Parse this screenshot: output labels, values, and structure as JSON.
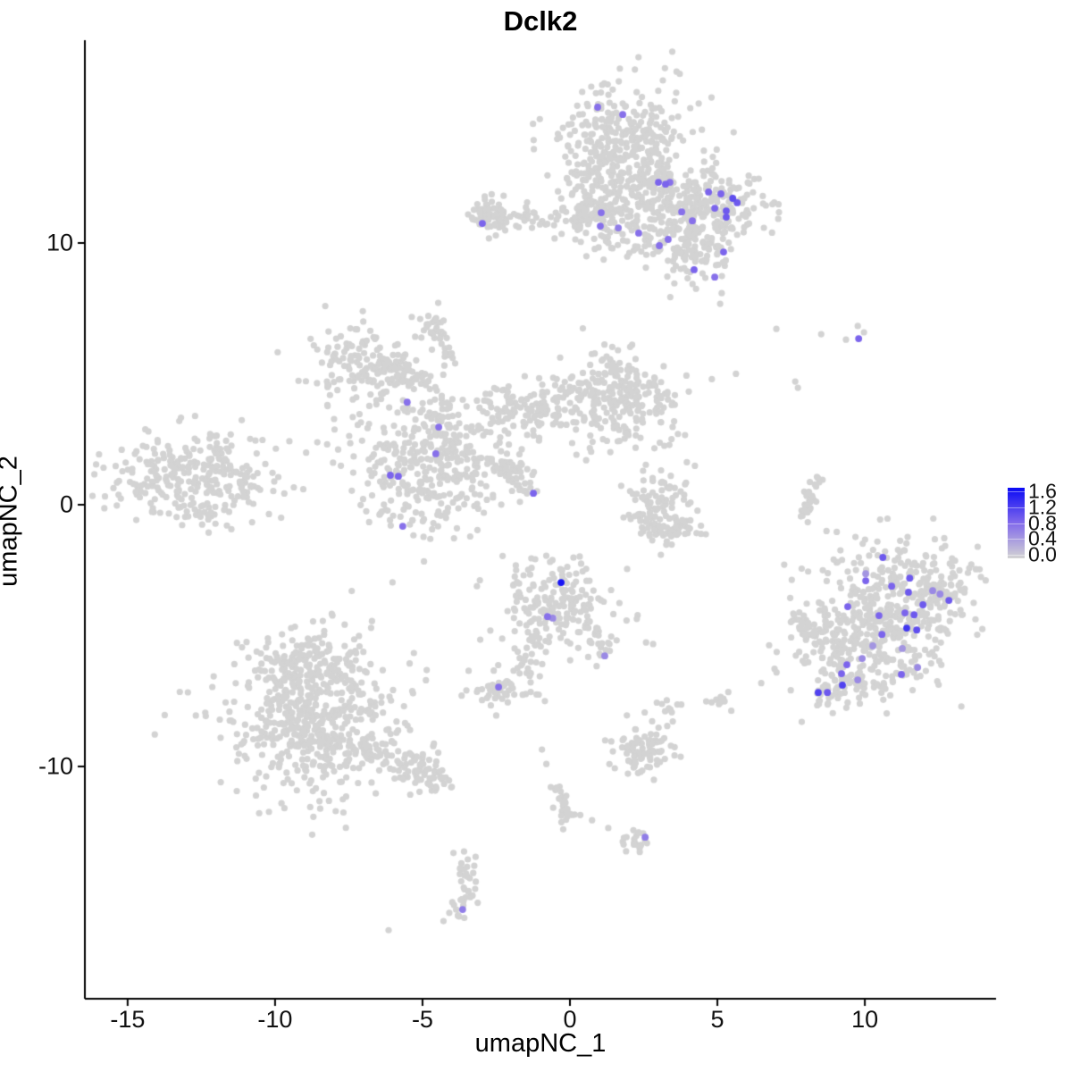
{
  "chart_data": {
    "type": "scatter",
    "title": "Dclk2",
    "xlabel": "umapNC_1",
    "ylabel": "umapNC_2",
    "x_ticks": [
      -15,
      -10,
      -5,
      0,
      5,
      10
    ],
    "y_ticks": [
      10,
      0,
      -10
    ],
    "x_domain": [
      -16.45,
      14.45
    ],
    "y_domain": [
      -18.87,
      17.75
    ],
    "grid": false,
    "legend_position": "right",
    "point_radius": 3.6,
    "base_color": "#d3d3d3",
    "axis_color": "#000000",
    "color_scale": {
      "min": 0.0,
      "max": 1.7,
      "stops": [
        [
          211,
          211,
          211
        ],
        [
          130,
          106,
          235
        ],
        [
          10,
          10,
          245
        ]
      ]
    },
    "legend": {
      "ticks": [
        "1.6",
        "1.2",
        "0.8",
        "0.4",
        "0.0"
      ],
      "tick_values": [
        1.6,
        1.2,
        0.8,
        0.4,
        0.0
      ]
    },
    "seed": 20240613,
    "clusters": [
      {
        "name": "top-main",
        "blobs": [
          {
            "x": 1.9,
            "y": 13.8,
            "sx": 1.1,
            "sy": 1.15,
            "n": 330
          },
          {
            "x": 1.6,
            "y": 11.5,
            "sx": 0.95,
            "sy": 0.85,
            "n": 170
          },
          {
            "x": 4.55,
            "y": 11.35,
            "sx": 1.15,
            "sy": 0.75,
            "n": 240
          },
          {
            "x": 4.3,
            "y": 9.5,
            "sx": 0.6,
            "sy": 0.65,
            "n": 70
          },
          {
            "x": 3.2,
            "y": 10.0,
            "sx": 0.9,
            "sy": 0.55,
            "n": 45
          },
          {
            "x": 0.8,
            "y": 11.2,
            "sx": 0.4,
            "sy": 0.3,
            "n": 25
          }
        ],
        "arms": [
          {
            "x1": 0.2,
            "y1": 12.9,
            "x2": 2.6,
            "y2": 12.6,
            "w": 0.5,
            "n": 40
          }
        ],
        "singles": []
      },
      {
        "name": "top-left-strip",
        "blobs": [
          {
            "x": -2.75,
            "y": 11.15,
            "sx": 0.3,
            "sy": 0.38,
            "n": 35
          }
        ],
        "arms": [
          {
            "x1": -3.2,
            "y1": 11.05,
            "x2": 0.5,
            "y2": 10.9,
            "w": 0.22,
            "n": 80
          }
        ],
        "singles": []
      },
      {
        "name": "central-left-complex",
        "blobs": [
          {
            "x": -6.8,
            "y": 5.3,
            "sx": 0.95,
            "sy": 0.75,
            "n": 150
          },
          {
            "x": -4.55,
            "y": 6.85,
            "sx": 0.32,
            "sy": 0.35,
            "n": 30
          },
          {
            "x": -4.8,
            "y": 1.5,
            "sx": 1.35,
            "sy": 1.25,
            "n": 360
          },
          {
            "x": 1.9,
            "y": 3.9,
            "sx": 1.1,
            "sy": 0.85,
            "n": 170
          },
          {
            "x": 1.6,
            "y": 5.4,
            "sx": 0.45,
            "sy": 0.5,
            "n": 28
          }
        ],
        "arms": [
          {
            "x1": -6.1,
            "y1": 5.2,
            "x2": -4.9,
            "y2": 4.6,
            "w": 0.25,
            "n": 35
          },
          {
            "x1": -4.3,
            "y1": 6.0,
            "x2": -4.05,
            "y2": 5.3,
            "w": 0.15,
            "n": 10
          },
          {
            "x1": -4.4,
            "y1": 4.2,
            "x2": -4.45,
            "y2": 2.6,
            "w": 0.3,
            "n": 35
          },
          {
            "x1": -2.8,
            "y1": 3.5,
            "x2": 2.0,
            "y2": 3.95,
            "w": 0.55,
            "n": 200
          },
          {
            "x1": -2.7,
            "y1": 1.9,
            "x2": -1.35,
            "y2": 0.6,
            "w": 0.22,
            "n": 55
          }
        ],
        "singles": []
      },
      {
        "name": "far-left",
        "blobs": [
          {
            "x": -12.9,
            "y": 1.15,
            "sx": 1.45,
            "sy": 0.85,
            "n": 260
          }
        ],
        "arms": [
          {
            "x1": -13.0,
            "y1": -0.2,
            "x2": -12.0,
            "y2": -0.6,
            "w": 0.25,
            "n": 20
          },
          {
            "x1": -11.4,
            "y1": 0.95,
            "x2": -10.7,
            "y2": 0.7,
            "w": 0.3,
            "n": 25
          }
        ],
        "singles": [
          [
            -14.8,
            0.8
          ],
          [
            -14.4,
            0.45
          ]
        ]
      },
      {
        "name": "mid-right-crescent",
        "blobs": [
          {
            "x": 3.1,
            "y": 0.4,
            "sx": 0.5,
            "sy": 0.55,
            "n": 60
          }
        ],
        "arms": [
          {
            "x1": 2.2,
            "y1": -0.5,
            "x2": 3.2,
            "y2": -1.1,
            "w": 0.25,
            "n": 40
          },
          {
            "x1": 3.2,
            "y1": -1.1,
            "x2": 4.3,
            "y2": -0.55,
            "w": 0.25,
            "n": 40
          }
        ],
        "singles": []
      },
      {
        "name": "thin-sliver",
        "blobs": [],
        "arms": [
          {
            "x1": 8.4,
            "y1": 0.95,
            "x2": 7.85,
            "y2": -0.6,
            "w": 0.13,
            "n": 32
          }
        ],
        "singles": [
          [
            8.35,
            0.12
          ],
          [
            8.7,
            -1.0
          ]
        ]
      },
      {
        "name": "center-bottom",
        "blobs": [
          {
            "x": -0.4,
            "y": -3.75,
            "sx": 1.0,
            "sy": 0.95,
            "n": 190
          }
        ],
        "arms": [
          {
            "x1": -1.15,
            "y1": -5.1,
            "x2": -1.75,
            "y2": -6.5,
            "w": 0.18,
            "n": 22
          },
          {
            "x1": 0.6,
            "y1": -4.6,
            "x2": 1.2,
            "y2": -5.8,
            "w": 0.18,
            "n": 22
          }
        ],
        "singles": []
      },
      {
        "name": "right-large",
        "blobs": [
          {
            "x": 11.3,
            "y": -3.3,
            "sx": 1.25,
            "sy": 0.95,
            "n": 260
          },
          {
            "x": 9.9,
            "y": -5.5,
            "sx": 1.35,
            "sy": 1.05,
            "n": 300
          },
          {
            "x": 8.1,
            "y": -4.6,
            "sx": 0.4,
            "sy": 0.55,
            "n": 40
          },
          {
            "x": 12.9,
            "y": -3.6,
            "sx": 0.4,
            "sy": 0.4,
            "n": 30
          }
        ],
        "arms": [
          {
            "x1": 9.3,
            "y1": -6.9,
            "x2": 8.5,
            "y2": -7.3,
            "w": 0.3,
            "n": 30
          }
        ],
        "singles": []
      },
      {
        "name": "bottom-left-large",
        "blobs": [
          {
            "x": -8.9,
            "y": -6.1,
            "sx": 1.0,
            "sy": 0.75,
            "n": 180
          },
          {
            "x": -8.7,
            "y": -8.4,
            "sx": 1.5,
            "sy": 1.3,
            "n": 480
          }
        ],
        "arms": [
          {
            "x1": -7.0,
            "y1": -9.1,
            "x2": -4.3,
            "y2": -10.7,
            "w": 0.35,
            "n": 110
          }
        ],
        "singles": []
      },
      {
        "name": "small-mid-bottom",
        "blobs": [
          {
            "x": -2.4,
            "y": -7.05,
            "sx": 0.5,
            "sy": 0.33,
            "n": 50
          }
        ],
        "arms": [],
        "singles": [
          [
            -1.33,
            -7.15
          ],
          [
            -1.06,
            -7.25
          ],
          [
            -0.85,
            -7.5
          ],
          [
            -2.5,
            -8.05
          ]
        ]
      },
      {
        "name": "small-lower-right",
        "blobs": [
          {
            "x": 2.5,
            "y": -9.3,
            "sx": 0.6,
            "sy": 0.5,
            "n": 85
          }
        ],
        "arms": [],
        "singles": []
      },
      {
        "name": "bottom-trail",
        "blobs": [
          {
            "x": 2.25,
            "y": -12.85,
            "sx": 0.35,
            "sy": 0.22,
            "n": 22
          }
        ],
        "arms": [
          {
            "x1": -0.55,
            "y1": -10.6,
            "x2": -0.1,
            "y2": -12.2,
            "w": 0.16,
            "n": 28
          }
        ],
        "singles": [
          [
            -0.95,
            -9.35
          ],
          [
            -0.8,
            -9.9
          ],
          [
            0.35,
            -11.85
          ],
          [
            0.75,
            -12.05
          ],
          [
            1.3,
            -12.35
          ]
        ]
      },
      {
        "name": "bottom-snake",
        "blobs": [
          {
            "x": -3.5,
            "y": -14.0,
            "sx": 0.18,
            "sy": 0.28,
            "n": 14
          },
          {
            "x": -3.45,
            "y": -14.8,
            "sx": 0.2,
            "sy": 0.3,
            "n": 12
          },
          {
            "x": -3.7,
            "y": -15.4,
            "sx": 0.22,
            "sy": 0.22,
            "n": 12
          }
        ],
        "arms": [],
        "singles": [
          [
            -6.15,
            -16.25
          ],
          [
            -3.2,
            -13.45
          ],
          [
            -3.95,
            -13.3
          ]
        ]
      },
      {
        "name": "top-right-sparse",
        "blobs": [],
        "arms": [],
        "singles": [
          [
            7.0,
            6.72
          ],
          [
            8.52,
            6.52
          ],
          [
            9.36,
            6.31
          ],
          [
            9.76,
            6.83
          ],
          [
            9.97,
            6.59
          ],
          [
            7.64,
            4.71
          ],
          [
            7.73,
            4.47
          ]
        ]
      },
      {
        "name": "scattered-mid",
        "blobs": [
          {
            "x": 5.06,
            "y": -7.5,
            "sx": 0.28,
            "sy": 0.2,
            "n": 10
          },
          {
            "x": 3.4,
            "y": -7.8,
            "sx": 0.22,
            "sy": 0.18,
            "n": 9
          }
        ],
        "arms": [],
        "singles": [
          [
            2.58,
            -5.26
          ],
          [
            2.82,
            -5.32
          ],
          [
            2.48,
            1.3
          ]
        ]
      }
    ],
    "expressing_points": [
      [
        0.94,
        15.19,
        0.8
      ],
      [
        1.79,
        14.91,
        0.8
      ],
      [
        3.0,
        12.32,
        0.9
      ],
      [
        3.24,
        12.25,
        0.9
      ],
      [
        3.39,
        12.32,
        0.8
      ],
      [
        3.79,
        11.19,
        0.8
      ],
      [
        4.7,
        11.95,
        0.9
      ],
      [
        5.12,
        11.88,
        0.9
      ],
      [
        5.52,
        11.71,
        1.1
      ],
      [
        5.67,
        11.54,
        1.0
      ],
      [
        4.91,
        11.33,
        0.9
      ],
      [
        5.3,
        11.23,
        1.0
      ],
      [
        5.3,
        10.99,
        1.0
      ],
      [
        4.15,
        10.85,
        0.8
      ],
      [
        1.06,
        11.16,
        0.8
      ],
      [
        1.03,
        10.65,
        0.8
      ],
      [
        1.64,
        10.58,
        0.7
      ],
      [
        2.33,
        10.38,
        0.8
      ],
      [
        3.03,
        9.9,
        0.8
      ],
      [
        3.33,
        10.14,
        0.8
      ],
      [
        5.21,
        9.66,
        0.9
      ],
      [
        4.21,
        8.98,
        0.9
      ],
      [
        4.91,
        8.7,
        0.8
      ],
      [
        -2.97,
        10.75,
        0.9
      ],
      [
        -5.52,
        3.92,
        0.8
      ],
      [
        -4.45,
        2.97,
        0.8
      ],
      [
        -4.55,
        1.95,
        0.8
      ],
      [
        -6.09,
        1.13,
        0.9
      ],
      [
        -5.82,
        1.09,
        0.9
      ],
      [
        -5.67,
        -0.82,
        0.8
      ],
      [
        -1.24,
        0.44,
        0.9
      ],
      [
        9.79,
        6.35,
        0.9
      ],
      [
        -0.3,
        -2.97,
        1.6
      ],
      [
        -0.76,
        -4.27,
        0.8
      ],
      [
        -0.58,
        -4.33,
        0.6
      ],
      [
        1.18,
        -5.77,
        0.6
      ],
      [
        -2.42,
        -6.96,
        0.8
      ],
      [
        2.55,
        -12.7,
        0.7
      ],
      [
        -3.64,
        -15.46,
        0.7
      ],
      [
        10.61,
        -2.01,
        1.0
      ],
      [
        10.03,
        -2.63,
        0.5
      ],
      [
        10.03,
        -2.9,
        0.9
      ],
      [
        11.52,
        -2.8,
        1.0
      ],
      [
        10.91,
        -3.11,
        0.9
      ],
      [
        11.48,
        -3.34,
        1.0
      ],
      [
        12.3,
        -3.28,
        0.6
      ],
      [
        12.55,
        -3.41,
        0.6
      ],
      [
        12.85,
        -3.65,
        1.0
      ],
      [
        11.97,
        -3.82,
        1.0
      ],
      [
        9.42,
        -3.89,
        0.9
      ],
      [
        10.48,
        -4.23,
        0.9
      ],
      [
        11.36,
        -4.13,
        0.9
      ],
      [
        11.67,
        -4.2,
        1.0
      ],
      [
        11.42,
        -4.71,
        1.3
      ],
      [
        11.76,
        -4.78,
        1.1
      ],
      [
        10.58,
        -4.95,
        0.9
      ],
      [
        10.27,
        -5.39,
        0.5
      ],
      [
        11.27,
        -5.49,
        0.5
      ],
      [
        9.91,
        -5.87,
        0.6
      ],
      [
        9.39,
        -6.11,
        0.9
      ],
      [
        11.79,
        -6.21,
        0.6
      ],
      [
        9.21,
        -6.45,
        0.9
      ],
      [
        11.24,
        -6.48,
        0.9
      ],
      [
        9.76,
        -6.69,
        0.6
      ],
      [
        9.24,
        -6.89,
        1.2
      ],
      [
        8.42,
        -7.17,
        1.2
      ],
      [
        8.73,
        -7.17,
        1.0
      ]
    ]
  }
}
